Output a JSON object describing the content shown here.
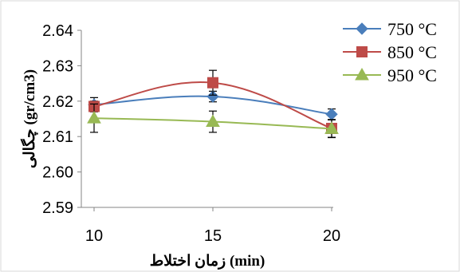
{
  "chart_data": {
    "type": "line",
    "x": [
      10,
      15,
      20
    ],
    "series": [
      {
        "name": "750 °C",
        "color": "#4a7ebb",
        "marker": "diamond",
        "values": [
          2.619,
          2.6213,
          2.6163
        ],
        "error": [
          0.002,
          0.0015,
          0.0015
        ]
      },
      {
        "name": "850 °C",
        "color": "#be4b48",
        "marker": "square",
        "values": [
          2.6185,
          2.6252,
          2.6123
        ],
        "error": [
          0.0015,
          0.0035,
          0.0025
        ]
      },
      {
        "name": "950 °C",
        "color": "#98b954",
        "marker": "triangle",
        "values": [
          2.6152,
          2.6142,
          2.6122
        ],
        "error": [
          0.004,
          0.003,
          0.0025
        ]
      }
    ],
    "xlabel": "زمان اختلاط (min)",
    "ylabel": "چگالی (gr/cm3)",
    "ylim": [
      2.59,
      2.64
    ],
    "yticks": [
      "2.59",
      "2.60",
      "2.61",
      "2.62",
      "2.63",
      "2.64"
    ],
    "xticks": [
      "10",
      "15",
      "20"
    ],
    "grid": false,
    "legend": "top-right"
  }
}
